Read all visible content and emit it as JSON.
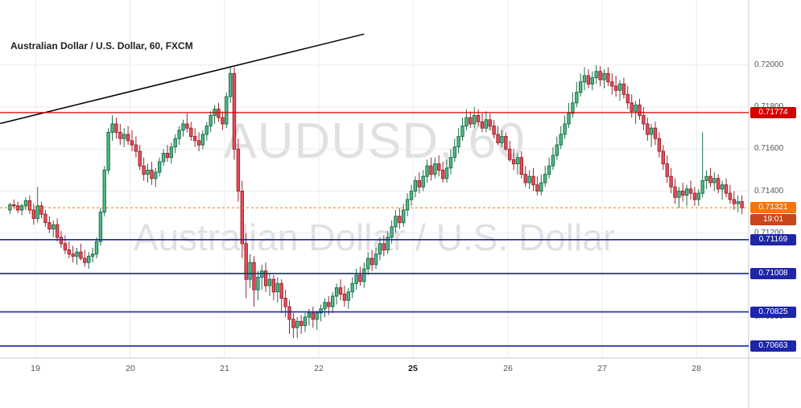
{
  "header": {
    "symbol_title": "Australian Dollar / U.S. Dollar, 60, FXCM"
  },
  "watermark": {
    "line1": "AUDUSD, 60",
    "line2": "Australian Dollar / U.S. Dollar"
  },
  "colors": {
    "up_fill": "#53b987",
    "up_border": "#1d6f4c",
    "down_fill": "#eb4d5c",
    "down_border": "#99262f",
    "grid": "#ececec",
    "axis_border": "#c8c8c8",
    "axis_text": "#555555",
    "bold_tick": "#1a1a1a",
    "red": "#d40000",
    "blue": "#1e26a8",
    "orange": "#f97402",
    "orange_dark": "#c8461b",
    "trendline": "#000000",
    "watermark": "#9a9a9a",
    "title": "#222222"
  },
  "chart_data": {
    "type": "candlestick",
    "symbol": "AUDUSD",
    "interval": "60",
    "provider": "FXCM",
    "title": "Australian Dollar / U.S. Dollar, 60, FXCM",
    "y_range": [
      0.70605,
      0.7231
    ],
    "grid": {
      "h_prices": [
        0.72,
        0.718,
        0.716,
        0.714,
        0.712,
        0.71,
        0.708
      ],
      "day_start_indices": [
        7,
        31,
        55,
        79,
        103,
        127,
        151,
        175
      ]
    },
    "axis": {
      "price_ticks": [
        {
          "label": "0.72000",
          "value": 0.72
        },
        {
          "label": "0.71800",
          "value": 0.718
        },
        {
          "label": "0.71600",
          "value": 0.716
        },
        {
          "label": "0.71400",
          "value": 0.714
        },
        {
          "label": "0.71200",
          "value": 0.712
        },
        {
          "label": "0.71000",
          "value": 0.71
        },
        {
          "label": "0.70800",
          "value": 0.708
        }
      ],
      "time_ticks": [
        {
          "label": "19",
          "index": 7,
          "bold": false
        },
        {
          "label": "20",
          "index": 31,
          "bold": false
        },
        {
          "label": "21",
          "index": 55,
          "bold": false
        },
        {
          "label": "22",
          "index": 79,
          "bold": false
        },
        {
          "label": "25",
          "index": 103,
          "bold": true
        },
        {
          "label": "26",
          "index": 127,
          "bold": false
        },
        {
          "label": "27",
          "index": 151,
          "bold": false
        },
        {
          "label": "28",
          "index": 175,
          "bold": false
        }
      ]
    },
    "levels": {
      "resistance": {
        "label": "0.71774",
        "price": 0.71774
      },
      "supports": [
        {
          "label": "0.71169",
          "price": 0.71169
        },
        {
          "label": "0.71008",
          "price": 0.71008
        },
        {
          "label": "0.70825",
          "price": 0.70825
        },
        {
          "label": "0.70663",
          "price": 0.70663
        }
      ],
      "current": {
        "label": "0.71321",
        "price": 0.71321,
        "countdown": "19:01"
      }
    },
    "trendline": {
      "from": {
        "index": -2.5,
        "price": 0.71722
      },
      "to": {
        "index": 90,
        "price": 0.72148
      }
    },
    "candles": [
      [
        0.7131,
        0.71345,
        0.7129,
        0.71335
      ],
      [
        0.71335,
        0.7136,
        0.71315,
        0.7133
      ],
      [
        0.7133,
        0.7135,
        0.71295,
        0.7131
      ],
      [
        0.7131,
        0.7134,
        0.71285,
        0.7133
      ],
      [
        0.7133,
        0.7137,
        0.7131,
        0.71355
      ],
      [
        0.71355,
        0.7138,
        0.7129,
        0.7131
      ],
      [
        0.7131,
        0.7134,
        0.7124,
        0.7127
      ],
      [
        0.7127,
        0.7142,
        0.7125,
        0.7133
      ],
      [
        0.7133,
        0.7135,
        0.7127,
        0.7129
      ],
      [
        0.7129,
        0.7131,
        0.7123,
        0.7125
      ],
      [
        0.7125,
        0.7128,
        0.712,
        0.7122
      ],
      [
        0.7122,
        0.7126,
        0.7118,
        0.7124
      ],
      [
        0.7124,
        0.7127,
        0.7116,
        0.7118
      ],
      [
        0.7118,
        0.7121,
        0.7113,
        0.7115
      ],
      [
        0.7115,
        0.7119,
        0.711,
        0.7112
      ],
      [
        0.7112,
        0.7116,
        0.7108,
        0.711
      ],
      [
        0.711,
        0.7114,
        0.7106,
        0.7109
      ],
      [
        0.7109,
        0.7113,
        0.7105,
        0.7111
      ],
      [
        0.7111,
        0.7115,
        0.7107,
        0.7108
      ],
      [
        0.7108,
        0.7112,
        0.7104,
        0.7106
      ],
      [
        0.7106,
        0.7111,
        0.7103,
        0.7109
      ],
      [
        0.7109,
        0.7113,
        0.7106,
        0.711
      ],
      [
        0.711,
        0.7118,
        0.7108,
        0.7116
      ],
      [
        0.7116,
        0.7132,
        0.7114,
        0.713
      ],
      [
        0.713,
        0.7152,
        0.7128,
        0.715
      ],
      [
        0.715,
        0.717,
        0.7148,
        0.7168
      ],
      [
        0.7168,
        0.7176,
        0.7164,
        0.7172
      ],
      [
        0.7172,
        0.7175,
        0.7165,
        0.7168
      ],
      [
        0.7168,
        0.7172,
        0.7162,
        0.7165
      ],
      [
        0.7165,
        0.717,
        0.7161,
        0.7167
      ],
      [
        0.7167,
        0.7171,
        0.7162,
        0.7164
      ],
      [
        0.7164,
        0.7169,
        0.7159,
        0.7162
      ],
      [
        0.7162,
        0.7166,
        0.7156,
        0.7159
      ],
      [
        0.7159,
        0.7162,
        0.715,
        0.7152
      ],
      [
        0.7152,
        0.7156,
        0.7145,
        0.7148
      ],
      [
        0.7148,
        0.7153,
        0.7144,
        0.715
      ],
      [
        0.715,
        0.7154,
        0.7143,
        0.7146
      ],
      [
        0.7146,
        0.7151,
        0.7142,
        0.7149
      ],
      [
        0.7149,
        0.7156,
        0.7147,
        0.7154
      ],
      [
        0.7154,
        0.716,
        0.7152,
        0.7158
      ],
      [
        0.7158,
        0.7162,
        0.7154,
        0.7156
      ],
      [
        0.7156,
        0.7163,
        0.7153,
        0.7161
      ],
      [
        0.7161,
        0.7167,
        0.7158,
        0.7165
      ],
      [
        0.7165,
        0.7171,
        0.7162,
        0.7169
      ],
      [
        0.7169,
        0.7174,
        0.7166,
        0.7172
      ],
      [
        0.7172,
        0.7177,
        0.7168,
        0.717
      ],
      [
        0.717,
        0.7173,
        0.7164,
        0.7166
      ],
      [
        0.7166,
        0.717,
        0.7161,
        0.7164
      ],
      [
        0.7164,
        0.7168,
        0.7159,
        0.7162
      ],
      [
        0.7162,
        0.7169,
        0.716,
        0.7167
      ],
      [
        0.7167,
        0.7173,
        0.7164,
        0.7171
      ],
      [
        0.7171,
        0.7178,
        0.7168,
        0.7176
      ],
      [
        0.7176,
        0.7181,
        0.7172,
        0.7179
      ],
      [
        0.7179,
        0.7182,
        0.7173,
        0.7175
      ],
      [
        0.7175,
        0.7178,
        0.7169,
        0.7172
      ],
      [
        0.7172,
        0.7187,
        0.717,
        0.7185
      ],
      [
        0.7185,
        0.71995,
        0.7182,
        0.7196
      ],
      [
        0.7196,
        0.7199,
        0.7155,
        0.716
      ],
      [
        0.716,
        0.7165,
        0.7135,
        0.714
      ],
      [
        0.714,
        0.7145,
        0.7108,
        0.7115
      ],
      [
        0.7115,
        0.712,
        0.7089,
        0.7098
      ],
      [
        0.7098,
        0.711,
        0.7094,
        0.7106
      ],
      [
        0.7106,
        0.7109,
        0.7085,
        0.7093
      ],
      [
        0.7093,
        0.7102,
        0.7088,
        0.7099
      ],
      [
        0.7099,
        0.7105,
        0.7093,
        0.7102
      ],
      [
        0.7102,
        0.7106,
        0.7092,
        0.7095
      ],
      [
        0.7095,
        0.7101,
        0.709,
        0.7098
      ],
      [
        0.7098,
        0.71,
        0.7088,
        0.7092
      ],
      [
        0.7092,
        0.7099,
        0.7087,
        0.7096
      ],
      [
        0.7096,
        0.7098,
        0.7082,
        0.7089
      ],
      [
        0.7089,
        0.7093,
        0.708,
        0.7085
      ],
      [
        0.7085,
        0.7088,
        0.7072,
        0.7079
      ],
      [
        0.7079,
        0.7082,
        0.707,
        0.7075
      ],
      [
        0.7075,
        0.708,
        0.707,
        0.7078
      ],
      [
        0.7078,
        0.7081,
        0.7072,
        0.7076
      ],
      [
        0.7076,
        0.7082,
        0.7073,
        0.708
      ],
      [
        0.708,
        0.7084,
        0.7076,
        0.7082
      ],
      [
        0.7082,
        0.7085,
        0.7075,
        0.7079
      ],
      [
        0.7079,
        0.7083,
        0.7074,
        0.7082
      ],
      [
        0.7082,
        0.7086,
        0.7078,
        0.7084
      ],
      [
        0.7084,
        0.7089,
        0.708,
        0.7087
      ],
      [
        0.7087,
        0.709,
        0.7081,
        0.7085
      ],
      [
        0.7085,
        0.7092,
        0.7082,
        0.709
      ],
      [
        0.709,
        0.7096,
        0.7086,
        0.7094
      ],
      [
        0.7094,
        0.7098,
        0.7088,
        0.7091
      ],
      [
        0.7091,
        0.7095,
        0.7085,
        0.7088
      ],
      [
        0.7088,
        0.7094,
        0.7084,
        0.7092
      ],
      [
        0.7092,
        0.7099,
        0.7089,
        0.7096
      ],
      [
        0.7096,
        0.7103,
        0.7093,
        0.71
      ],
      [
        0.71,
        0.7104,
        0.7095,
        0.7097
      ],
      [
        0.7097,
        0.7106,
        0.7094,
        0.7103
      ],
      [
        0.7103,
        0.7111,
        0.71,
        0.7108
      ],
      [
        0.7108,
        0.7112,
        0.7102,
        0.7105
      ],
      [
        0.7105,
        0.7113,
        0.7103,
        0.711
      ],
      [
        0.711,
        0.7118,
        0.7107,
        0.7115
      ],
      [
        0.7115,
        0.7119,
        0.7109,
        0.7112
      ],
      [
        0.7112,
        0.7121,
        0.711,
        0.7118
      ],
      [
        0.7118,
        0.7126,
        0.7115,
        0.7123
      ],
      [
        0.7123,
        0.7131,
        0.712,
        0.7128
      ],
      [
        0.7128,
        0.7132,
        0.7122,
        0.7125
      ],
      [
        0.7125,
        0.7134,
        0.7123,
        0.7131
      ],
      [
        0.7131,
        0.7139,
        0.7128,
        0.7136
      ],
      [
        0.7136,
        0.7143,
        0.7133,
        0.714
      ],
      [
        0.714,
        0.7147,
        0.7137,
        0.7145
      ],
      [
        0.7145,
        0.7149,
        0.7139,
        0.7142
      ],
      [
        0.7142,
        0.715,
        0.714,
        0.7147
      ],
      [
        0.7147,
        0.7155,
        0.7144,
        0.7152
      ],
      [
        0.7152,
        0.7156,
        0.7145,
        0.7148
      ],
      [
        0.7148,
        0.7156,
        0.7146,
        0.7153
      ],
      [
        0.7153,
        0.7157,
        0.7147,
        0.715
      ],
      [
        0.715,
        0.7154,
        0.7144,
        0.7146
      ],
      [
        0.7146,
        0.7155,
        0.7144,
        0.7151
      ],
      [
        0.7151,
        0.716,
        0.7148,
        0.7156
      ],
      [
        0.7156,
        0.7165,
        0.7154,
        0.7161
      ],
      [
        0.7161,
        0.717,
        0.7158,
        0.7166
      ],
      [
        0.7166,
        0.7175,
        0.7164,
        0.7171
      ],
      [
        0.7171,
        0.7179,
        0.7169,
        0.7175
      ],
      [
        0.7175,
        0.7178,
        0.717,
        0.7172
      ],
      [
        0.7172,
        0.718,
        0.717,
        0.7176
      ],
      [
        0.7176,
        0.7179,
        0.7171,
        0.7173
      ],
      [
        0.7173,
        0.7177,
        0.7168,
        0.717
      ],
      [
        0.717,
        0.7178,
        0.7168,
        0.7174
      ],
      [
        0.7174,
        0.7177,
        0.7169,
        0.7171
      ],
      [
        0.7171,
        0.7174,
        0.7165,
        0.7167
      ],
      [
        0.7167,
        0.7171,
        0.7162,
        0.7163
      ],
      [
        0.7163,
        0.7169,
        0.7161,
        0.7166
      ],
      [
        0.7166,
        0.7168,
        0.7159,
        0.716
      ],
      [
        0.716,
        0.7164,
        0.7154,
        0.7155
      ],
      [
        0.7155,
        0.716,
        0.715,
        0.7153
      ],
      [
        0.7153,
        0.7158,
        0.7148,
        0.7156
      ],
      [
        0.7156,
        0.7159,
        0.7146,
        0.7148
      ],
      [
        0.7148,
        0.7152,
        0.7142,
        0.7144
      ],
      [
        0.7144,
        0.715,
        0.7141,
        0.7147
      ],
      [
        0.7147,
        0.7151,
        0.714,
        0.7143
      ],
      [
        0.7143,
        0.7147,
        0.7138,
        0.714
      ],
      [
        0.714,
        0.7148,
        0.7138,
        0.7144
      ],
      [
        0.7144,
        0.7152,
        0.7142,
        0.7148
      ],
      [
        0.7148,
        0.7156,
        0.7146,
        0.7152
      ],
      [
        0.7152,
        0.7161,
        0.715,
        0.7157
      ],
      [
        0.7157,
        0.7166,
        0.7155,
        0.7162
      ],
      [
        0.7162,
        0.7171,
        0.716,
        0.7167
      ],
      [
        0.7167,
        0.7176,
        0.7165,
        0.7172
      ],
      [
        0.7172,
        0.7182,
        0.717,
        0.7177
      ],
      [
        0.7177,
        0.7187,
        0.7175,
        0.7182
      ],
      [
        0.7182,
        0.7192,
        0.718,
        0.7187
      ],
      [
        0.7187,
        0.7196,
        0.7185,
        0.7192
      ],
      [
        0.7192,
        0.7199,
        0.7188,
        0.7195
      ],
      [
        0.7195,
        0.7198,
        0.7189,
        0.7191
      ],
      [
        0.7191,
        0.7197,
        0.7188,
        0.7194
      ],
      [
        0.7194,
        0.72,
        0.7191,
        0.7197
      ],
      [
        0.7197,
        0.71995,
        0.719,
        0.7193
      ],
      [
        0.7193,
        0.7198,
        0.7189,
        0.7196
      ],
      [
        0.7196,
        0.7199,
        0.719,
        0.7192
      ],
      [
        0.7192,
        0.7196,
        0.7186,
        0.719
      ],
      [
        0.719,
        0.7195,
        0.7185,
        0.7188
      ],
      [
        0.7188,
        0.7193,
        0.7183,
        0.7191
      ],
      [
        0.7191,
        0.7194,
        0.7184,
        0.7186
      ],
      [
        0.7186,
        0.719,
        0.7179,
        0.7182
      ],
      [
        0.7182,
        0.7186,
        0.7175,
        0.7178
      ],
      [
        0.7178,
        0.7183,
        0.7172,
        0.7181
      ],
      [
        0.7181,
        0.7184,
        0.7174,
        0.7176
      ],
      [
        0.7176,
        0.718,
        0.7169,
        0.7172
      ],
      [
        0.7172,
        0.7175,
        0.7164,
        0.7167
      ],
      [
        0.7167,
        0.7172,
        0.7161,
        0.717
      ],
      [
        0.717,
        0.7173,
        0.7162,
        0.7165
      ],
      [
        0.7165,
        0.7168,
        0.7156,
        0.7159
      ],
      [
        0.7159,
        0.7162,
        0.715,
        0.7153
      ],
      [
        0.7153,
        0.7157,
        0.7144,
        0.7147
      ],
      [
        0.7147,
        0.7151,
        0.7139,
        0.7142
      ],
      [
        0.7142,
        0.7146,
        0.7134,
        0.7137
      ],
      [
        0.7137,
        0.7142,
        0.7132,
        0.714
      ],
      [
        0.714,
        0.7144,
        0.7135,
        0.7138
      ],
      [
        0.7138,
        0.7143,
        0.7133,
        0.7141
      ],
      [
        0.7141,
        0.7145,
        0.7136,
        0.7139
      ],
      [
        0.7139,
        0.7142,
        0.7133,
        0.7136
      ],
      [
        0.7136,
        0.7141,
        0.7133,
        0.7139
      ],
      [
        0.7139,
        0.7168,
        0.7137,
        0.7145
      ],
      [
        0.7145,
        0.715,
        0.7141,
        0.7147
      ],
      [
        0.7147,
        0.7151,
        0.7142,
        0.7144
      ],
      [
        0.7144,
        0.7149,
        0.714,
        0.7146
      ],
      [
        0.7146,
        0.7148,
        0.7139,
        0.7141
      ],
      [
        0.7141,
        0.7145,
        0.7136,
        0.7143
      ],
      [
        0.7143,
        0.7146,
        0.7137,
        0.7139
      ],
      [
        0.7139,
        0.7143,
        0.7134,
        0.7136
      ],
      [
        0.7136,
        0.714,
        0.7131,
        0.7134
      ],
      [
        0.7134,
        0.7138,
        0.713,
        0.7135
      ],
      [
        0.7135,
        0.7138,
        0.7129,
        0.71321
      ]
    ]
  }
}
